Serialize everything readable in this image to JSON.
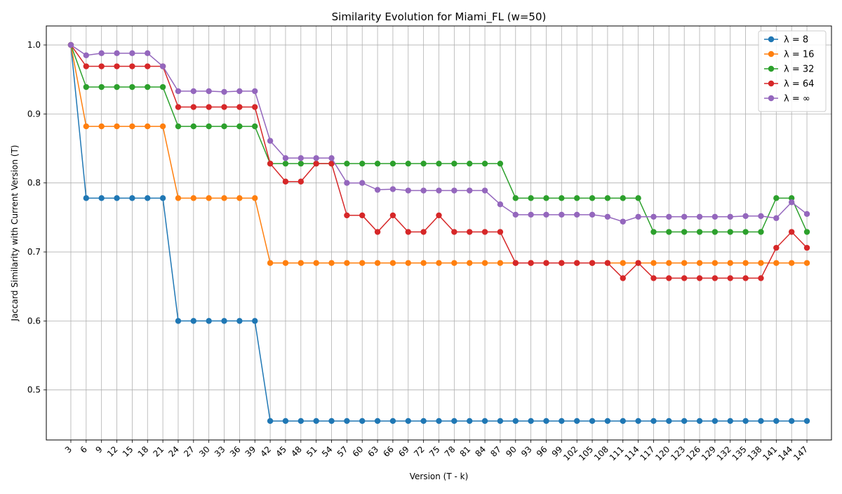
{
  "chart_data": {
    "type": "line",
    "title": "Similarity Evolution for Miami_FL (w=50)",
    "xlabel": "Version (T - k)",
    "ylabel": "Jaccard Similarity with Current Version (T)",
    "x": [
      3,
      6,
      9,
      12,
      15,
      18,
      21,
      24,
      27,
      30,
      33,
      36,
      39,
      42,
      45,
      48,
      51,
      54,
      57,
      60,
      63,
      66,
      69,
      72,
      75,
      78,
      81,
      84,
      87,
      90,
      93,
      96,
      99,
      102,
      105,
      108,
      111,
      114,
      117,
      120,
      123,
      126,
      129,
      132,
      135,
      138,
      141,
      144,
      147
    ],
    "xlim": [
      -1.8,
      151.8
    ],
    "ylim": [
      0.4275,
      1.0275
    ],
    "yticks": [
      0.5,
      0.6,
      0.7,
      0.8,
      0.9,
      1.0
    ],
    "ytick_labels": [
      "0.5",
      "0.6",
      "0.7",
      "0.8",
      "0.9",
      "1.0"
    ],
    "grid": true,
    "legend_position": "upper-right",
    "series": [
      {
        "name": "λ = 8",
        "color": "#1f77b4",
        "values": [
          1.0,
          0.778,
          0.778,
          0.778,
          0.778,
          0.778,
          0.778,
          0.6,
          0.6,
          0.6,
          0.6,
          0.6,
          0.6,
          0.455,
          0.455,
          0.455,
          0.455,
          0.455,
          0.455,
          0.455,
          0.455,
          0.455,
          0.455,
          0.455,
          0.455,
          0.455,
          0.455,
          0.455,
          0.455,
          0.455,
          0.455,
          0.455,
          0.455,
          0.455,
          0.455,
          0.455,
          0.455,
          0.455,
          0.455,
          0.455,
          0.455,
          0.455,
          0.455,
          0.455,
          0.455,
          0.455,
          0.455,
          0.455,
          0.455
        ]
      },
      {
        "name": "λ = 16",
        "color": "#ff7f0e",
        "values": [
          1.0,
          0.882,
          0.882,
          0.882,
          0.882,
          0.882,
          0.882,
          0.778,
          0.778,
          0.778,
          0.778,
          0.778,
          0.778,
          0.684,
          0.684,
          0.684,
          0.684,
          0.684,
          0.684,
          0.684,
          0.684,
          0.684,
          0.684,
          0.684,
          0.684,
          0.684,
          0.684,
          0.684,
          0.684,
          0.684,
          0.684,
          0.684,
          0.684,
          0.684,
          0.684,
          0.684,
          0.684,
          0.684,
          0.684,
          0.684,
          0.684,
          0.684,
          0.684,
          0.684,
          0.684,
          0.684,
          0.684,
          0.684,
          0.684
        ]
      },
      {
        "name": "λ = 32",
        "color": "#2ca02c",
        "values": [
          1.0,
          0.939,
          0.939,
          0.939,
          0.939,
          0.939,
          0.939,
          0.882,
          0.882,
          0.882,
          0.882,
          0.882,
          0.882,
          0.828,
          0.828,
          0.828,
          0.828,
          0.828,
          0.828,
          0.828,
          0.828,
          0.828,
          0.828,
          0.828,
          0.828,
          0.828,
          0.828,
          0.828,
          0.828,
          0.778,
          0.778,
          0.778,
          0.778,
          0.778,
          0.778,
          0.778,
          0.778,
          0.778,
          0.729,
          0.729,
          0.729,
          0.729,
          0.729,
          0.729,
          0.729,
          0.729,
          0.778,
          0.778,
          0.729
        ]
      },
      {
        "name": "λ = 64",
        "color": "#d62728",
        "values": [
          1.0,
          0.969,
          0.969,
          0.969,
          0.969,
          0.969,
          0.969,
          0.91,
          0.91,
          0.91,
          0.91,
          0.91,
          0.91,
          0.828,
          0.802,
          0.802,
          0.828,
          0.828,
          0.753,
          0.753,
          0.729,
          0.753,
          0.729,
          0.729,
          0.753,
          0.729,
          0.729,
          0.729,
          0.729,
          0.684,
          0.684,
          0.684,
          0.684,
          0.684,
          0.684,
          0.684,
          0.662,
          0.684,
          0.662,
          0.662,
          0.662,
          0.662,
          0.662,
          0.662,
          0.662,
          0.662,
          0.706,
          0.729,
          0.706
        ]
      },
      {
        "name": "λ = ∞",
        "color": "#9467bd",
        "values": [
          1.0,
          0.985,
          0.988,
          0.988,
          0.988,
          0.988,
          0.969,
          0.933,
          0.933,
          0.933,
          0.932,
          0.933,
          0.933,
          0.861,
          0.836,
          0.836,
          0.836,
          0.836,
          0.8,
          0.8,
          0.79,
          0.791,
          0.789,
          0.789,
          0.789,
          0.789,
          0.789,
          0.789,
          0.769,
          0.754,
          0.754,
          0.754,
          0.754,
          0.754,
          0.754,
          0.751,
          0.744,
          0.751,
          0.751,
          0.751,
          0.751,
          0.751,
          0.751,
          0.751,
          0.752,
          0.752,
          0.749,
          0.772,
          0.755
        ]
      }
    ]
  }
}
